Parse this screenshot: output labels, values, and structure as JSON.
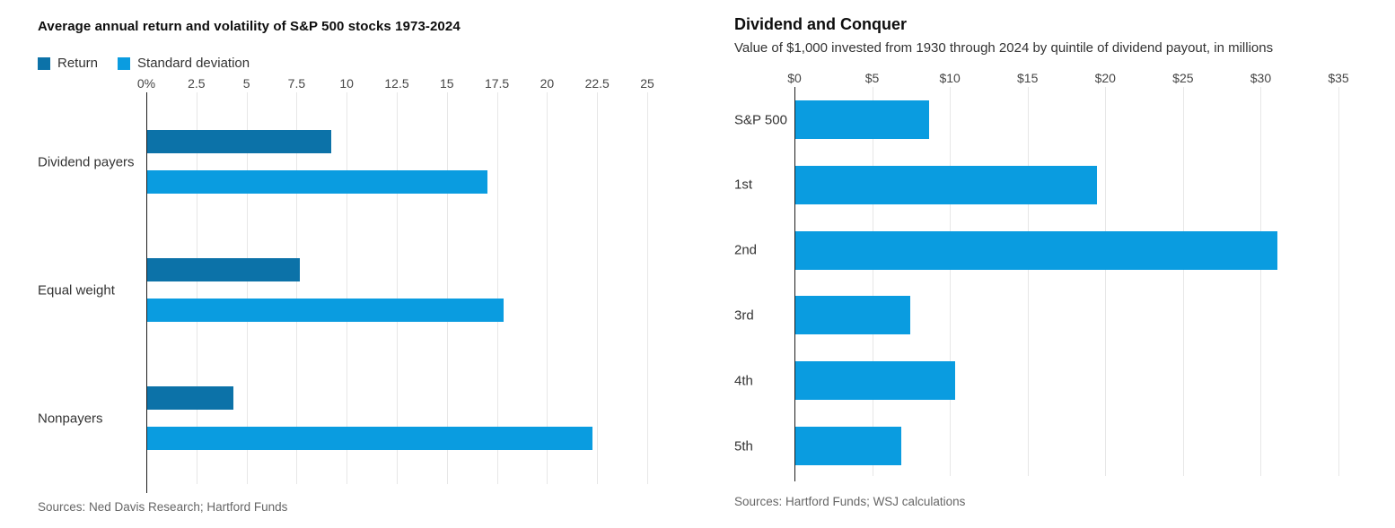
{
  "colors": {
    "return_bar": "#0c72a8",
    "std_dev_bar": "#0a9ce0",
    "gridline": "#e7e7e7",
    "axis": "#1c1c1c",
    "title_text": "#0d0d0d",
    "body_text": "#333333",
    "sources_text": "#666666"
  },
  "chart_data": [
    {
      "type": "bar",
      "orientation": "horizontal",
      "title": "Average annual return and volatility of S&P 500 stocks 1973-2024",
      "sources": "Sources: Ned Davis Research; Hartford Funds",
      "legend_position": "top",
      "grid": true,
      "categories": [
        "Dividend payers",
        "Equal weight",
        "Nonpayers"
      ],
      "series": [
        {
          "name": "Return",
          "color": "#0c72a8",
          "values": [
            9.2,
            7.6,
            4.3
          ]
        },
        {
          "name": "Standard deviation",
          "color": "#0a9ce0",
          "values": [
            17.0,
            17.8,
            22.2
          ]
        }
      ],
      "xlim": [
        0,
        25
      ],
      "x_ticks": [
        {
          "label": "0%",
          "value": 0
        },
        {
          "label": "2.5",
          "value": 2.5
        },
        {
          "label": "5",
          "value": 5
        },
        {
          "label": "7.5",
          "value": 7.5
        },
        {
          "label": "10",
          "value": 10
        },
        {
          "label": "12.5",
          "value": 12.5
        },
        {
          "label": "15",
          "value": 15
        },
        {
          "label": "17.5",
          "value": 17.5
        },
        {
          "label": "20",
          "value": 20
        },
        {
          "label": "22.5",
          "value": 22.5
        },
        {
          "label": "25",
          "value": 25
        }
      ]
    },
    {
      "type": "bar",
      "orientation": "horizontal",
      "title": "Dividend and Conquer",
      "subtitle": "Value of $1,000 invested from 1930 through 2024 by quintile of dividend payout, in millions",
      "sources": "Sources: Hartford Funds; WSJ calculations",
      "grid": true,
      "categories": [
        "S&P 500",
        "1st",
        "2nd",
        "3rd",
        "4th",
        "5th"
      ],
      "series": [
        {
          "name": "Value of $1,000 invested, in millions",
          "color": "#0a9ce0",
          "values": [
            8.6,
            19.4,
            31.0,
            7.4,
            10.3,
            6.8
          ]
        }
      ],
      "xlim": [
        0,
        35
      ],
      "x_ticks": [
        {
          "label": "$0",
          "value": 0
        },
        {
          "label": "$5",
          "value": 5
        },
        {
          "label": "$10",
          "value": 10
        },
        {
          "label": "$15",
          "value": 15
        },
        {
          "label": "$20",
          "value": 20
        },
        {
          "label": "$25",
          "value": 25
        },
        {
          "label": "$30",
          "value": 30
        },
        {
          "label": "$35",
          "value": 35
        }
      ]
    }
  ]
}
